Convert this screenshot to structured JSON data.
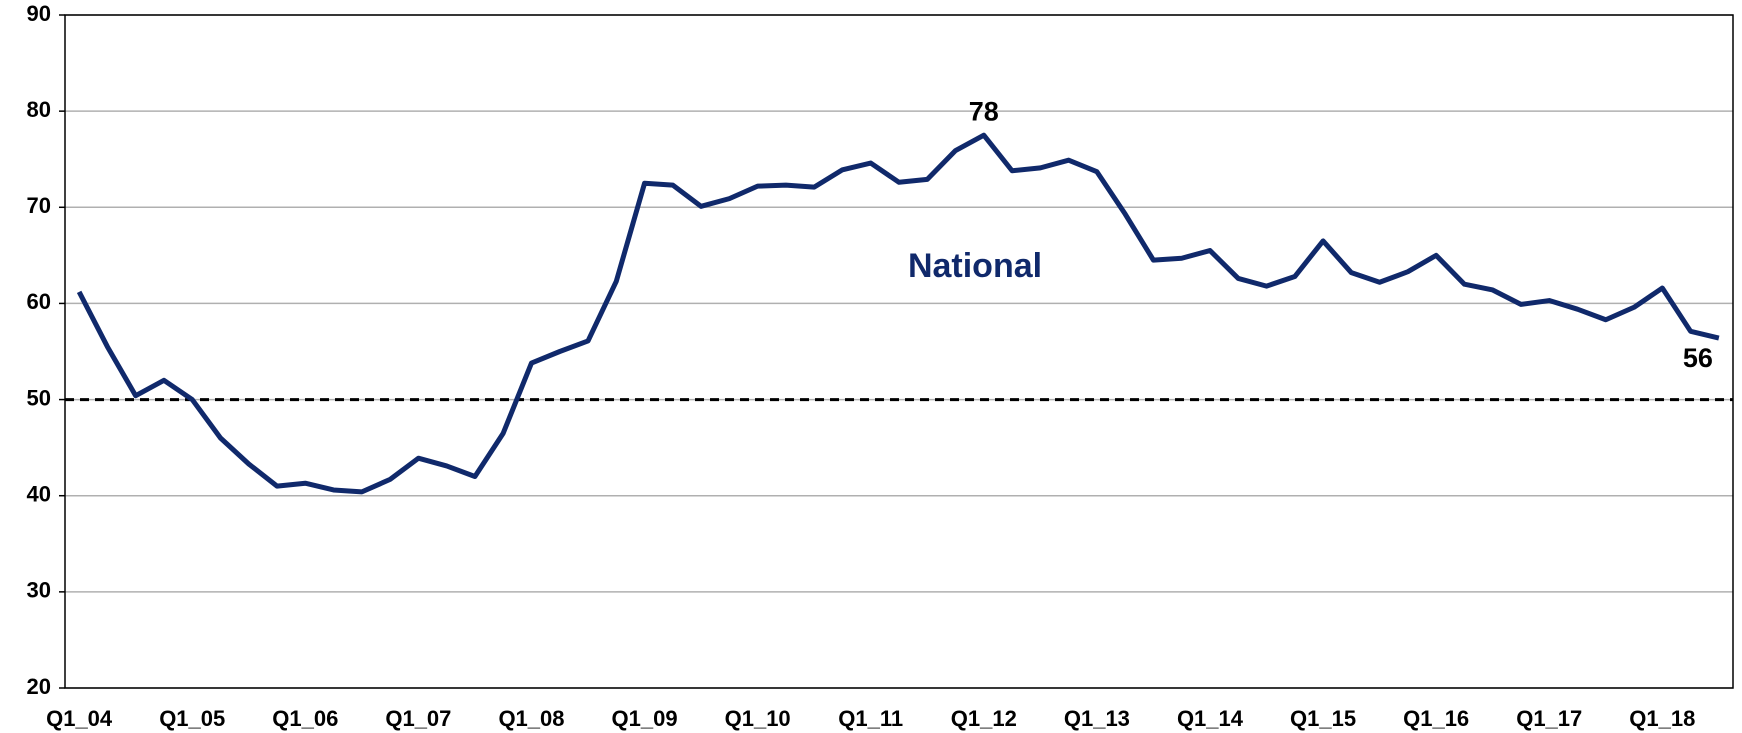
{
  "chart_data": {
    "type": "line",
    "categories": [
      "Q1_04",
      null,
      null,
      null,
      "Q1_05",
      null,
      null,
      null,
      "Q1_06",
      null,
      null,
      null,
      "Q1_07",
      null,
      null,
      null,
      "Q1_08",
      null,
      null,
      null,
      "Q1_09",
      null,
      null,
      null,
      "Q1_10",
      null,
      null,
      null,
      "Q1_11",
      null,
      null,
      null,
      "Q1_12",
      null,
      null,
      null,
      "Q1_13",
      null,
      null,
      null,
      "Q1_14",
      null,
      null,
      null,
      "Q1_15",
      null,
      null,
      null,
      "Q1_16",
      null,
      null,
      null,
      "Q1_17",
      null,
      null,
      null,
      "Q1_18",
      null,
      null
    ],
    "series": [
      {
        "name": "National",
        "color": "#10296b",
        "values": [
          61.2,
          55.5,
          50.4,
          52,
          50,
          46,
          43.3,
          41,
          41.3,
          40.6,
          40.4,
          41.7,
          43.9,
          43.1,
          42,
          46.5,
          53.8,
          55,
          56.1,
          62.3,
          72.5,
          72.3,
          70.1,
          70.9,
          72.2,
          72.3,
          72.1,
          73.9,
          74.6,
          72.6,
          72.9,
          75.9,
          77.5,
          73.8,
          74.1,
          74.9,
          73.7,
          69.3,
          64.5,
          64.7,
          65.5,
          62.6,
          61.8,
          62.8,
          66.5,
          63.2,
          62.2,
          63.3,
          65,
          62,
          61.4,
          59.9,
          60.3,
          59.4,
          58.3,
          59.6,
          61.6,
          57.1,
          56.4
        ],
        "value_labels": [
          null,
          null,
          null,
          null,
          null,
          null,
          null,
          null,
          null,
          null,
          null,
          null,
          null,
          null,
          null,
          null,
          null,
          null,
          null,
          null,
          null,
          null,
          null,
          null,
          null,
          null,
          null,
          null,
          null,
          null,
          null,
          null,
          "78",
          null,
          null,
          null,
          null,
          null,
          null,
          null,
          null,
          null,
          null,
          null,
          null,
          null,
          null,
          null,
          null,
          null,
          null,
          null,
          null,
          null,
          null,
          null,
          null,
          null,
          "56"
        ]
      }
    ],
    "reference_line": 50,
    "ylim": [
      20,
      90
    ],
    "yticks": [
      20,
      30,
      40,
      50,
      60,
      70,
      80,
      90
    ],
    "grid": true
  }
}
